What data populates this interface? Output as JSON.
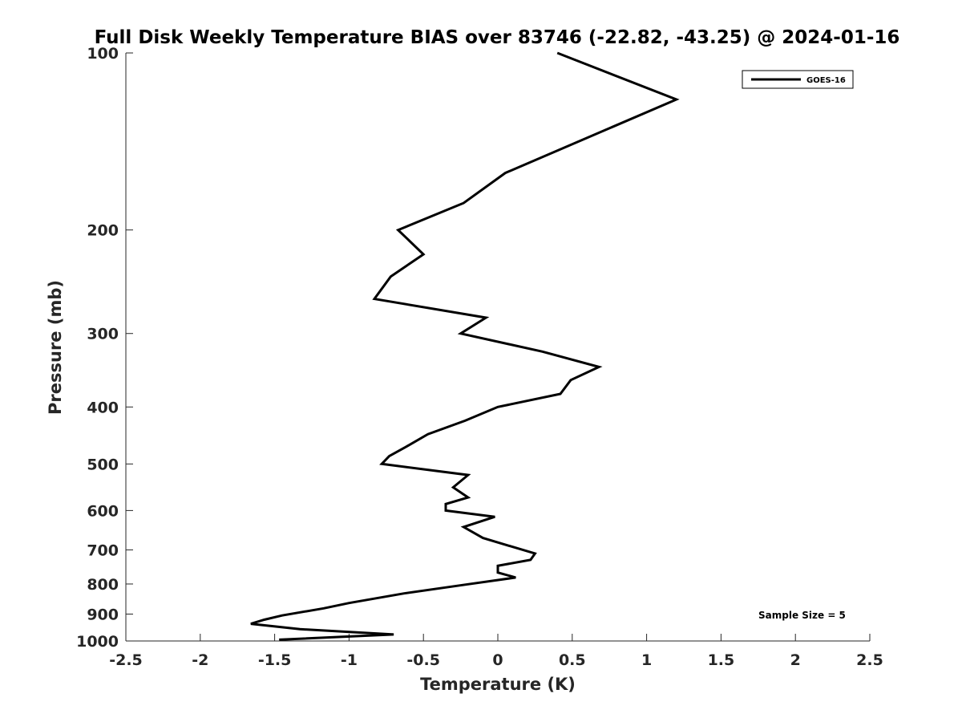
{
  "chart_data": {
    "type": "line",
    "title": "Full Disk Weekly Temperature BIAS over 83746 (-22.82, -43.25) @ 2024-01-16",
    "xlabel": "Temperature (K)",
    "ylabel": "Pressure (mb)",
    "xlim": [
      -2.5,
      2.5
    ],
    "ylim": [
      100,
      1000
    ],
    "y_scale": "log",
    "y_reversed": true,
    "x_ticks": [
      -2.5,
      -2,
      -1.5,
      -1,
      -0.5,
      0,
      0.5,
      1,
      1.5,
      2,
      2.5
    ],
    "x_tick_labels": [
      "-2.5",
      "-2",
      "-1.5",
      "-1",
      "-0.5",
      "0",
      "0.5",
      "1",
      "1.5",
      "2",
      "2.5"
    ],
    "y_ticks": [
      100,
      200,
      300,
      400,
      500,
      600,
      700,
      800,
      900,
      1000
    ],
    "y_tick_labels": [
      "100",
      "200",
      "300",
      "400",
      "500",
      "600",
      "700",
      "800",
      "900",
      "1000"
    ],
    "grid": false,
    "legend": {
      "position": "top-right",
      "entries": [
        "GOES-16"
      ]
    },
    "annotations": [
      {
        "text": "Sample Size = 5",
        "position": "bottom-right"
      }
    ],
    "series": [
      {
        "name": "GOES-16",
        "color": "#000000",
        "points": [
          {
            "x": 0.4,
            "p": 100
          },
          {
            "x": 1.2,
            "p": 120
          },
          {
            "x": 0.05,
            "p": 160
          },
          {
            "x": -0.23,
            "p": 180
          },
          {
            "x": -0.67,
            "p": 200
          },
          {
            "x": -0.5,
            "p": 220
          },
          {
            "x": -0.72,
            "p": 240
          },
          {
            "x": -0.83,
            "p": 262
          },
          {
            "x": -0.08,
            "p": 282
          },
          {
            "x": -0.25,
            "p": 300
          },
          {
            "x": 0.3,
            "p": 322
          },
          {
            "x": 0.68,
            "p": 342
          },
          {
            "x": 0.49,
            "p": 360
          },
          {
            "x": 0.42,
            "p": 380
          },
          {
            "x": 0.0,
            "p": 400
          },
          {
            "x": -0.22,
            "p": 422
          },
          {
            "x": -0.47,
            "p": 445
          },
          {
            "x": -0.62,
            "p": 468
          },
          {
            "x": -0.73,
            "p": 485
          },
          {
            "x": -0.78,
            "p": 500
          },
          {
            "x": -0.2,
            "p": 522
          },
          {
            "x": -0.3,
            "p": 548
          },
          {
            "x": -0.2,
            "p": 570
          },
          {
            "x": -0.35,
            "p": 585
          },
          {
            "x": -0.35,
            "p": 600
          },
          {
            "x": -0.02,
            "p": 615
          },
          {
            "x": -0.23,
            "p": 640
          },
          {
            "x": -0.1,
            "p": 668
          },
          {
            "x": 0.25,
            "p": 710
          },
          {
            "x": 0.22,
            "p": 728
          },
          {
            "x": 0.0,
            "p": 745
          },
          {
            "x": 0.0,
            "p": 765
          },
          {
            "x": 0.12,
            "p": 780
          },
          {
            "x": -0.22,
            "p": 802
          },
          {
            "x": -0.63,
            "p": 830
          },
          {
            "x": -1.0,
            "p": 862
          },
          {
            "x": -1.17,
            "p": 880
          },
          {
            "x": -1.45,
            "p": 905
          },
          {
            "x": -1.57,
            "p": 920
          },
          {
            "x": -1.66,
            "p": 935
          },
          {
            "x": -1.33,
            "p": 955
          },
          {
            "x": -0.7,
            "p": 975
          },
          {
            "x": -1.47,
            "p": 995
          }
        ]
      }
    ]
  }
}
